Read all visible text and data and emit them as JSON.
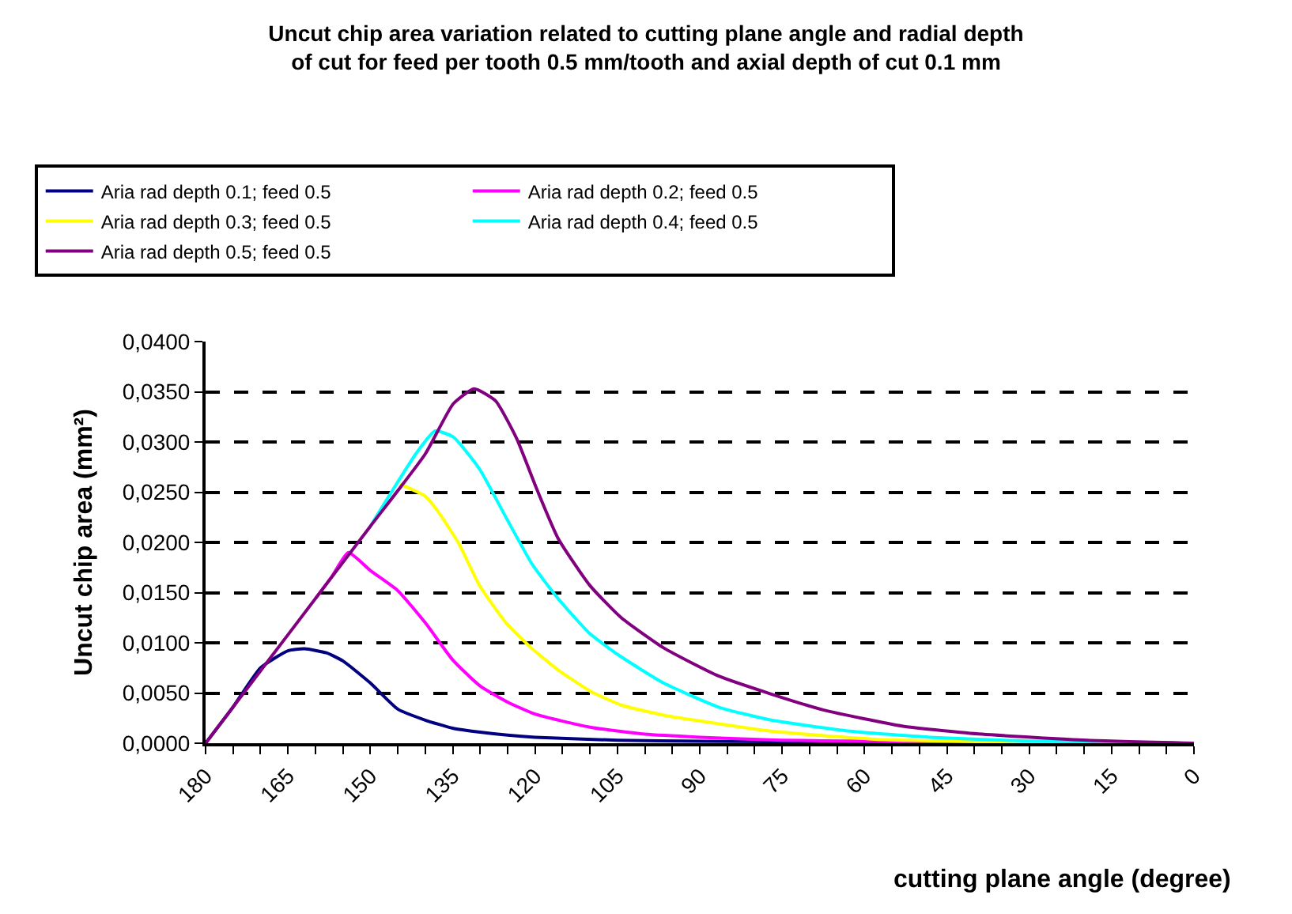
{
  "chart_data": {
    "type": "line",
    "title": "Uncut chip area variation related to cutting plane angle and radial depth\nof cut for feed per tooth 0.5 mm/tooth and axial depth of cut 0.1 mm",
    "xlabel": "cutting plane angle (degree)",
    "ylabel": "Uncut chip area (mm²)",
    "xlim": [
      180,
      0
    ],
    "ylim": [
      0,
      0.04
    ],
    "xticks": [
      180,
      {
        "value": 175,
        "label": null
      },
      {
        "value": 170,
        "label": null
      },
      165,
      {
        "value": 160,
        "label": null
      },
      {
        "value": 155,
        "label": null
      },
      150,
      {
        "value": 145,
        "label": null
      },
      {
        "value": 140,
        "label": null
      },
      135,
      {
        "value": 130,
        "label": null
      },
      {
        "value": 125,
        "label": null
      },
      120,
      {
        "value": 115,
        "label": null
      },
      {
        "value": 110,
        "label": null
      },
      105,
      {
        "value": 100,
        "label": null
      },
      {
        "value": 95,
        "label": null
      },
      90,
      {
        "value": 85,
        "label": null
      },
      {
        "value": 80,
        "label": null
      },
      75,
      {
        "value": 70,
        "label": null
      },
      {
        "value": 65,
        "label": null
      },
      60,
      {
        "value": 55,
        "label": null
      },
      {
        "value": 50,
        "label": null
      },
      45,
      {
        "value": 40,
        "label": null
      },
      {
        "value": 35,
        "label": null
      },
      30,
      {
        "value": 25,
        "label": null
      },
      {
        "value": 20,
        "label": null
      },
      15,
      {
        "value": 10,
        "label": null
      },
      {
        "value": 5,
        "label": null
      },
      0
    ],
    "yticks": [
      {
        "value": 0,
        "label": "0,0000"
      },
      {
        "value": 0.005,
        "label": "0,0050"
      },
      {
        "value": 0.01,
        "label": "0,0100"
      },
      {
        "value": 0.015,
        "label": "0,0150"
      },
      {
        "value": 0.02,
        "label": "0,0200"
      },
      {
        "value": 0.025,
        "label": "0,0250"
      },
      {
        "value": 0.03,
        "label": "0,0300"
      },
      {
        "value": 0.035,
        "label": "0,0350"
      },
      {
        "value": 0.04,
        "label": "0,0400"
      }
    ],
    "grid": "y",
    "legend": "top",
    "marker": "none",
    "line_style": "solid",
    "series": [
      {
        "name": "Aria rad depth 0.1; feed 0.5",
        "color": "#000080",
        "x": [
          180,
          175,
          170,
          165,
          162,
          158,
          155,
          150,
          145,
          140,
          135,
          130,
          125,
          120,
          105,
          90,
          60,
          30,
          0
        ],
        "values": [
          0,
          0.0036,
          0.0075,
          0.0092,
          0.0094,
          0.009,
          0.0082,
          0.006,
          0.0034,
          0.0023,
          0.0015,
          0.0011,
          0.0008,
          0.0006,
          0.0003,
          0.0002,
          0.0001,
          0,
          0
        ]
      },
      {
        "name": "Aria rad depth 0.2; feed 0.5",
        "color": "#ff00ff",
        "x": [
          160,
          157,
          154,
          150,
          145,
          140,
          135,
          130,
          125,
          120,
          110,
          100,
          90,
          75,
          60,
          45,
          30,
          0
        ],
        "values": [
          0.0144,
          0.0166,
          0.019,
          0.0172,
          0.0152,
          0.012,
          0.0083,
          0.0057,
          0.0041,
          0.0029,
          0.0016,
          0.0009,
          0.0006,
          0.0003,
          0.0002,
          0.0001,
          0,
          0
        ]
      },
      {
        "name": "Aria rad depth 0.3; feed 0.5",
        "color": "#ffff00",
        "x": [
          144.6,
          140,
          137.7,
          133.9,
          130.1,
          125.3,
          120.5,
          115.8,
          110,
          104.3,
          96.6,
          91,
          77,
          58,
          30,
          0
        ],
        "values": [
          0.0258,
          0.0246,
          0.0231,
          0.0199,
          0.0157,
          0.012,
          0.0094,
          0.0073,
          0.0052,
          0.0038,
          0.0028,
          0.0023,
          0.0012,
          0.0004,
          0.0001,
          0
        ]
      },
      {
        "name": "Aria rad depth 0.4; feed 0.5",
        "color": "#00ffff",
        "x": [
          150,
          141.6,
          138.2,
          134.9,
          130.1,
          125.3,
          120.5,
          115.8,
          110,
          104.3,
          96.6,
          86.6,
          77,
          62.6,
          48.2,
          29,
          0
        ],
        "values": [
          0.0216,
          0.0289,
          0.0311,
          0.0305,
          0.0273,
          0.0225,
          0.0178,
          0.0144,
          0.0109,
          0.0086,
          0.006,
          0.0036,
          0.0023,
          0.0012,
          0.0006,
          0.0002,
          0
        ]
      },
      {
        "name": "Aria rad depth 0.5; feed 0.5",
        "color": "#800080",
        "x": [
          180,
          170,
          160,
          150,
          140,
          134.9,
          131.1,
          127.2,
          123.4,
          119.6,
          115.8,
          110,
          104.3,
          96.6,
          86.6,
          77,
          67.4,
          53,
          38.6,
          19.4,
          0
        ],
        "values": [
          0,
          0.0072,
          0.0144,
          0.0216,
          0.0288,
          0.0338,
          0.0353,
          0.0341,
          0.0304,
          0.0252,
          0.0204,
          0.0157,
          0.0125,
          0.0095,
          0.0067,
          0.0049,
          0.0033,
          0.0017,
          0.0009,
          0.0003,
          0
        ]
      }
    ]
  }
}
